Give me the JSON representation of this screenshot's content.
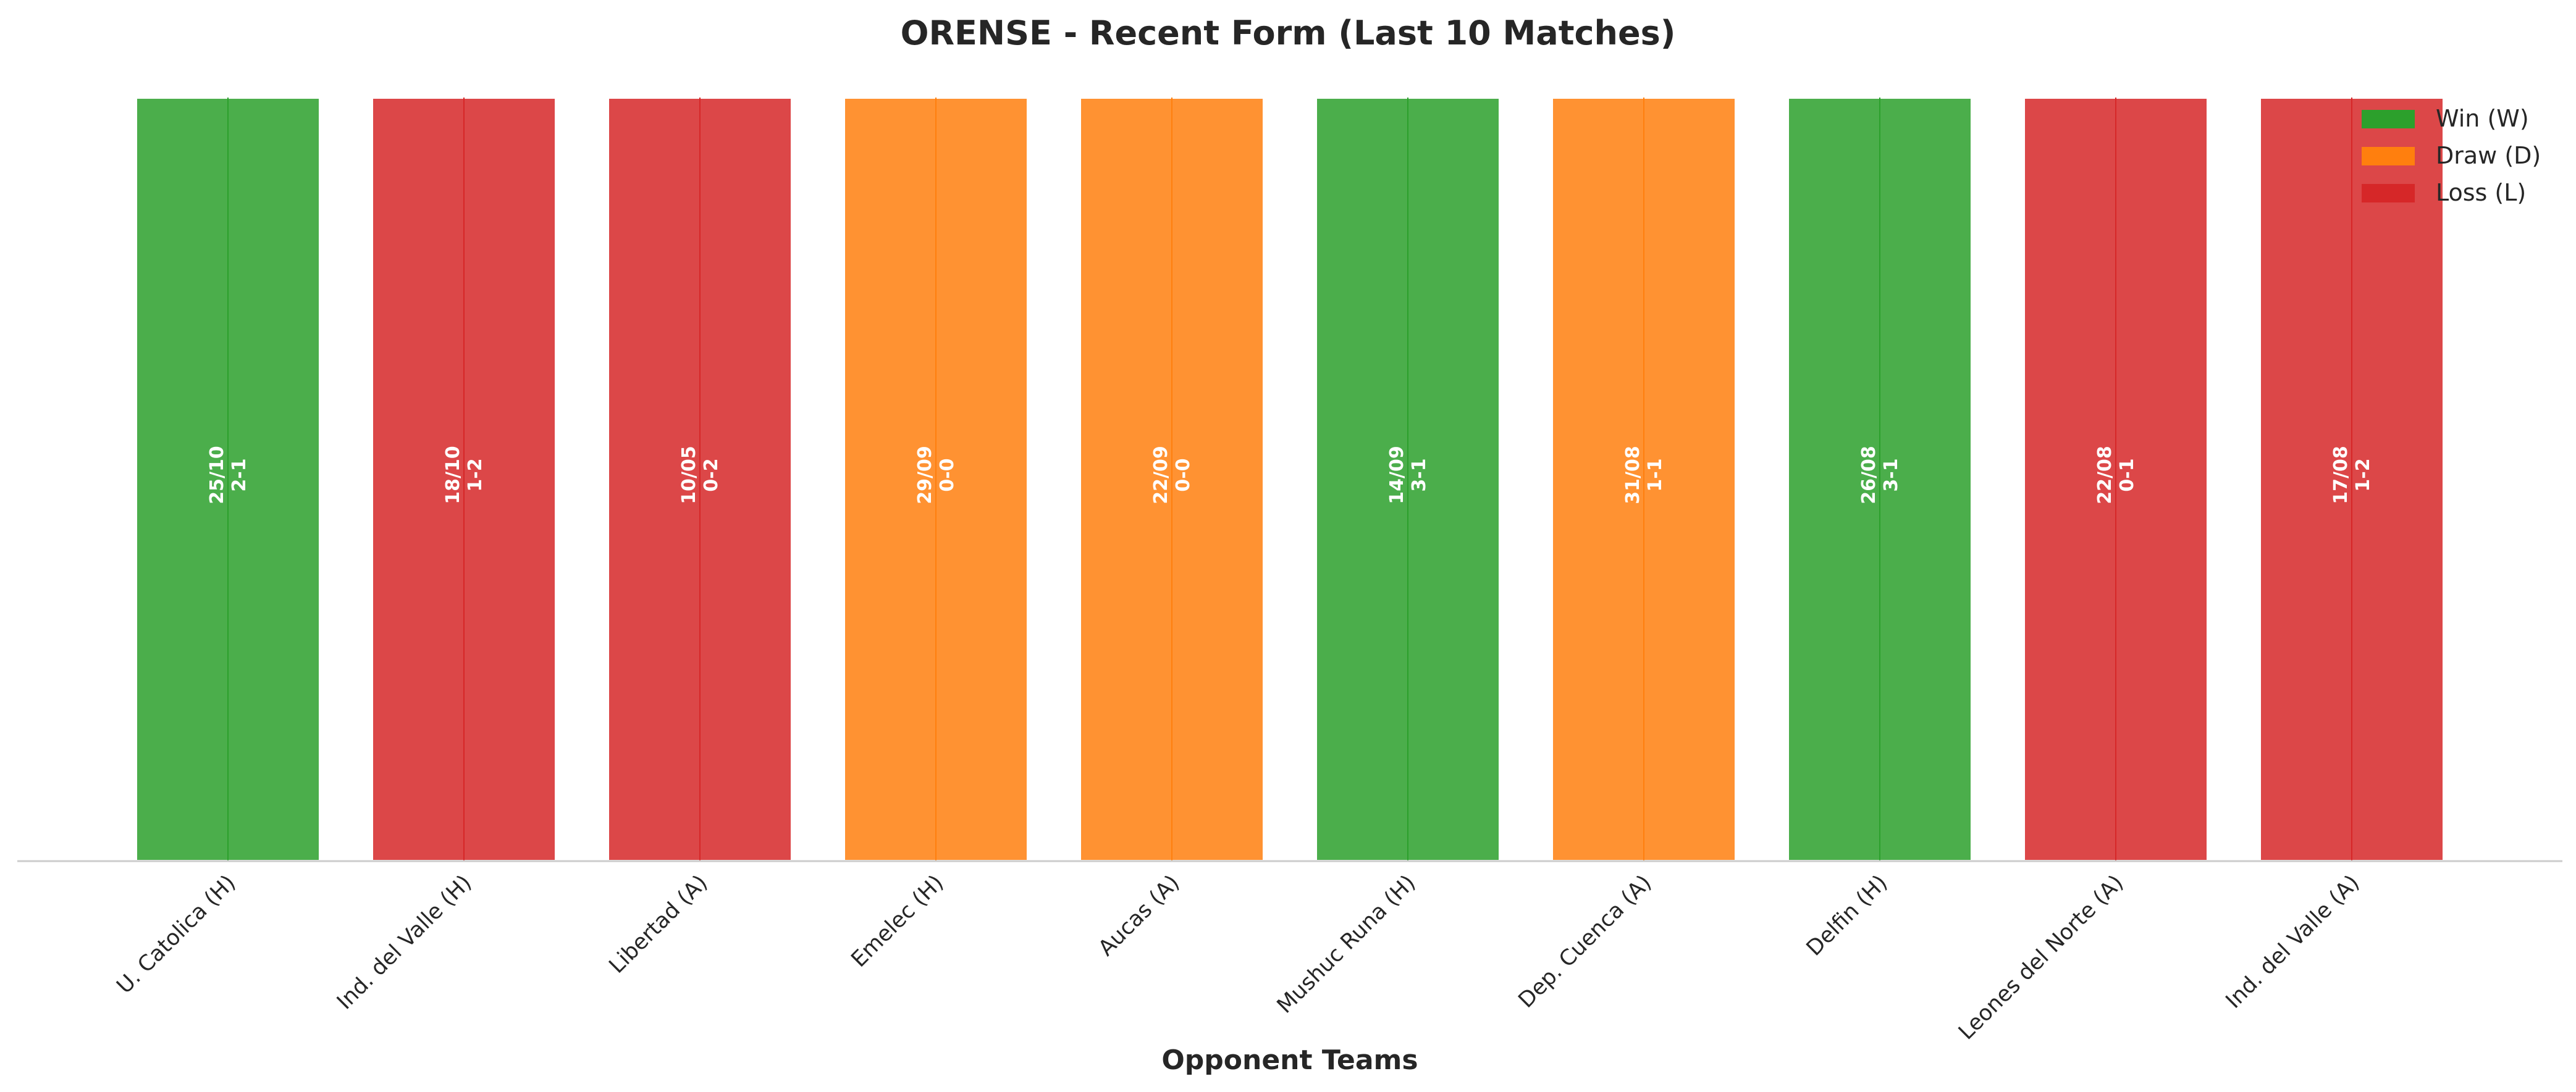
{
  "chart_data": {
    "type": "bar",
    "title": "ORENSE - Recent Form (Last 10 Matches)",
    "xlabel": "Opponent Teams",
    "ylabel": "",
    "grid": false,
    "legend_position": "top-right",
    "categories": [
      "U. Catolica (H)",
      "Ind. del Valle (H)",
      "Libertad (A)",
      "Emelec (H)",
      "Aucas (A)",
      "Mushuc Runa (H)",
      "Dep. Cuenca (A)",
      "Delfin (H)",
      "Leones del Norte (A)",
      "Ind. del Valle (A)"
    ],
    "values": [
      1,
      1,
      1,
      1,
      1,
      1,
      1,
      1,
      1,
      1
    ],
    "results": [
      "W",
      "L",
      "L",
      "D",
      "D",
      "W",
      "D",
      "W",
      "L",
      "L"
    ],
    "dates": [
      "25/10",
      "18/10",
      "10/05",
      "29/09",
      "22/09",
      "14/09",
      "31/08",
      "26/08",
      "22/08",
      "17/08"
    ],
    "scores": [
      "2-1",
      "1-2",
      "0-2",
      "0-0",
      "0-0",
      "3-1",
      "1-1",
      "3-1",
      "0-1",
      "1-2"
    ],
    "ylim": [
      0,
      1
    ],
    "legend": [
      {
        "key": "W",
        "label": "Win (W)"
      },
      {
        "key": "D",
        "label": "Draw (D)"
      },
      {
        "key": "L",
        "label": "Loss (L)"
      }
    ],
    "colors": {
      "W": "#2ca02c",
      "D": "#ff7f0e",
      "L": "#d62728",
      "bar_edge": "#ffffff",
      "axis": "#cccccc",
      "text": "#262626"
    }
  }
}
